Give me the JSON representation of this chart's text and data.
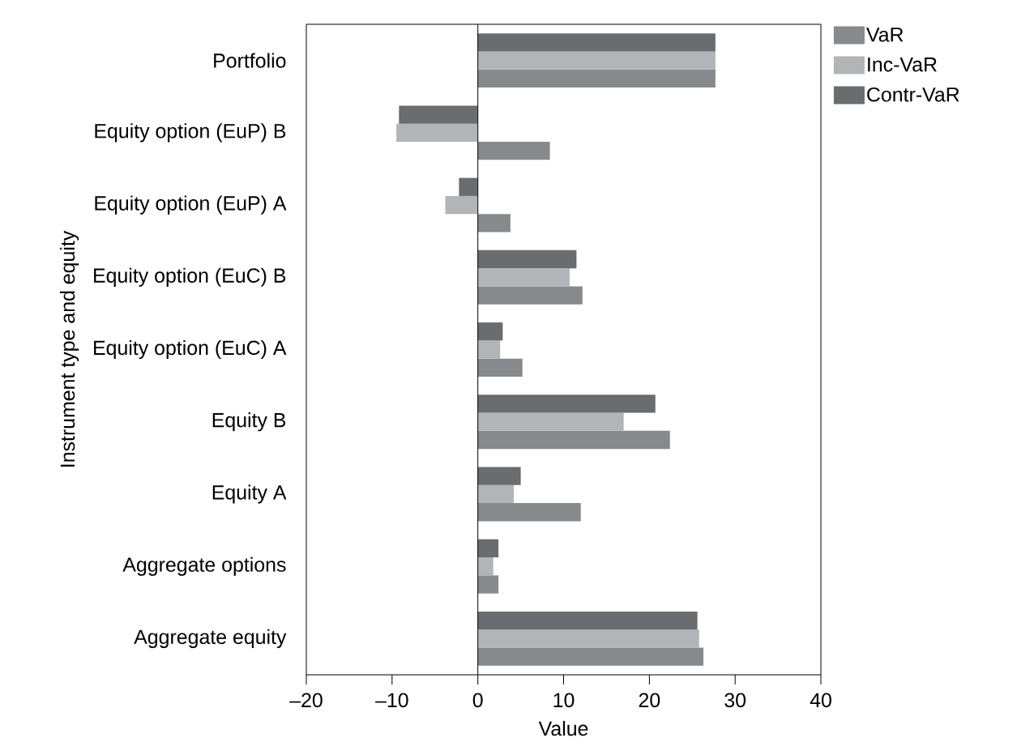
{
  "chart_data": {
    "type": "bar",
    "orientation": "horizontal",
    "xlabel": "Value",
    "ylabel": "Instrument type and equity",
    "categories": [
      "Portfolio",
      "Equity option (EuP) B",
      "Equity option (EuP) A",
      "Equity option (EuC) B",
      "Equity option (EuC) A",
      "Equity B",
      "Equity A",
      "Aggregate options",
      "Aggregate equity"
    ],
    "series": [
      {
        "name": "VaR",
        "color": "#88898d",
        "values": [
          27.7,
          8.4,
          3.8,
          12.2,
          5.2,
          22.4,
          12.0,
          2.4,
          26.3
        ]
      },
      {
        "name": "Inc-VaR",
        "color": "#b3b4b8",
        "values": [
          27.7,
          -9.5,
          -3.8,
          10.7,
          2.6,
          17.0,
          4.2,
          1.8,
          25.8
        ]
      },
      {
        "name": "Contr-VaR",
        "color": "#6b6c70",
        "values": [
          27.7,
          -9.2,
          -2.2,
          11.5,
          2.9,
          20.7,
          5.0,
          2.4,
          25.6
        ]
      }
    ],
    "xlim": [
      -20,
      40
    ],
    "xticks": [
      {
        "value": -20,
        "label": "–20"
      },
      {
        "value": -10,
        "label": "–10"
      },
      0,
      10,
      20,
      30,
      40
    ],
    "ref_lines": [
      {
        "axis": "x",
        "value": 0,
        "color": "#000000"
      }
    ],
    "legend": "top right"
  }
}
